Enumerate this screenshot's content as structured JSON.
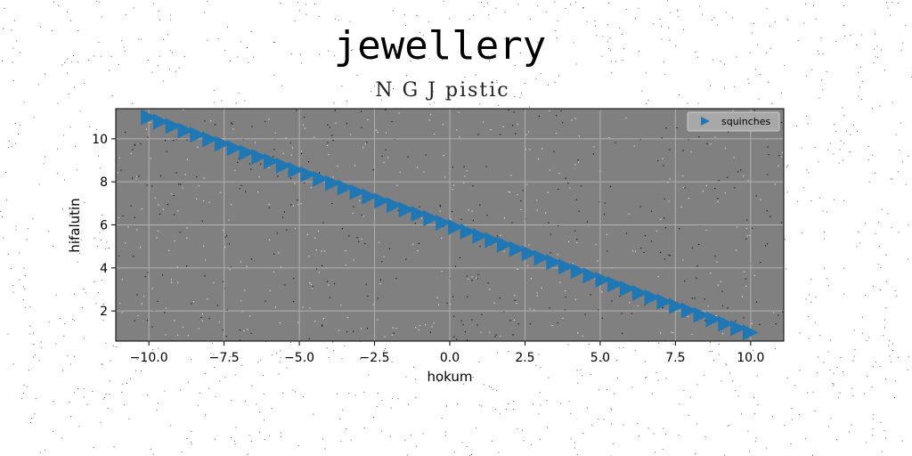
{
  "chart_data": {
    "type": "scatter",
    "title": "jewellery",
    "subtitle": "N G J pistic",
    "xlabel": "hokum",
    "ylabel": "hifalutin",
    "xlim": [
      -11.1,
      11.1
    ],
    "ylim": [
      0.6,
      11.4
    ],
    "xticks": [
      -10.0,
      -7.5,
      -5.0,
      -2.5,
      0.0,
      2.5,
      5.0,
      7.5,
      10.0
    ],
    "xtick_labels": [
      "−10.0",
      "−7.5",
      "−5.0",
      "−2.5",
      "0.0",
      "2.5",
      "5.0",
      "7.5",
      "10.0"
    ],
    "yticks": [
      2,
      4,
      6,
      8,
      10
    ],
    "ytick_labels": [
      "2",
      "4",
      "6",
      "8",
      "10"
    ],
    "grid": true,
    "legend_position": "top-right",
    "marker": "triangle-right",
    "series": [
      {
        "name": "squinches",
        "color": "#1f77b4",
        "x_start": -10.0,
        "x_end": 10.0,
        "y_start": 11.0,
        "y_end": 1.0,
        "point_count": 50
      }
    ]
  },
  "colors": {
    "plot_background": "#808080",
    "grid": "#b0b0b0",
    "series": "#1f77b4",
    "legend_background": "#a8a8a8"
  }
}
